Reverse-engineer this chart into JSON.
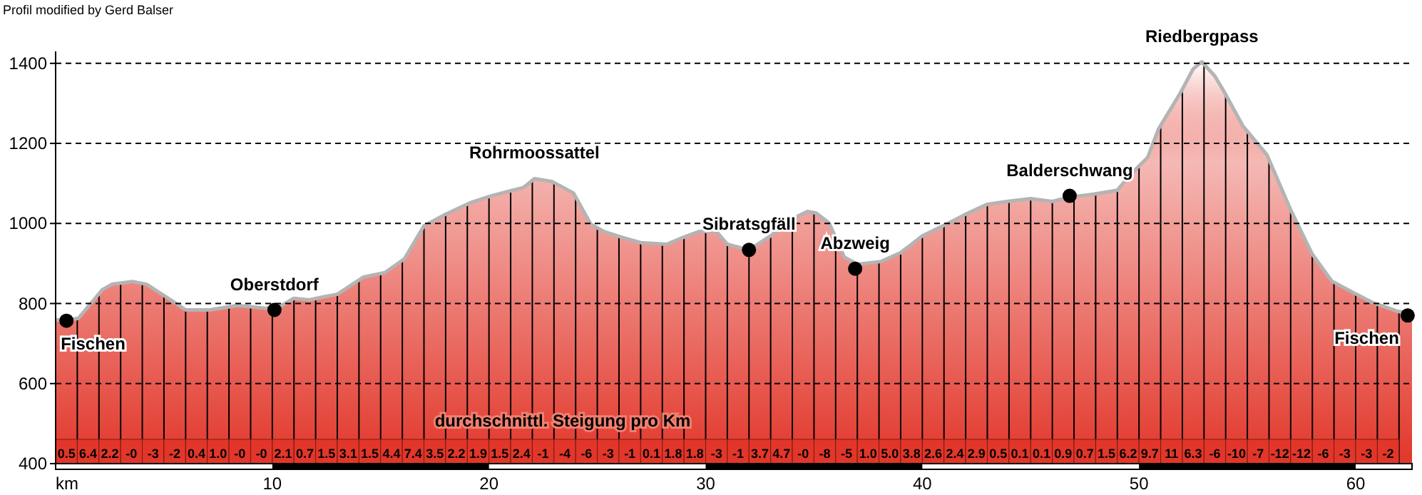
{
  "chart_data": {
    "type": "area",
    "title": "Profil modified by Gerd Balser",
    "xlabel": "km",
    "xlim": [
      0,
      62.6
    ],
    "ylim": [
      400,
      1430
    ],
    "xticks": [
      10,
      20,
      30,
      40,
      50,
      60
    ],
    "yticks": [
      400,
      600,
      800,
      1000,
      1200,
      1400
    ],
    "grid": true,
    "series": [
      {
        "color": "#e2362a",
        "x": [
          0,
          0.4,
          1.05,
          2.15,
          2.6,
          3.55,
          4.2,
          5.2,
          6.0,
          7.1,
          8.4,
          9.7,
          10.3,
          11.0,
          11.7,
          12.4,
          13.0,
          14.2,
          15.2,
          16.1,
          17.0,
          18.0,
          19.1,
          20.1,
          21.1,
          21.6,
          22.1,
          22.9,
          23.9,
          24.7,
          25.3,
          26.1,
          27.0,
          28.2,
          29.0,
          29.7,
          30.5,
          31.0,
          32.0,
          33.0,
          33.9,
          34.7,
          35.1,
          35.7,
          36.4,
          37.0,
          38.1,
          39.0,
          40.0,
          41.1,
          42.0,
          43.0,
          43.9,
          45.0,
          46.0,
          46.8,
          47.9,
          49.0,
          49.6,
          50.4,
          50.9,
          51.9,
          52.5,
          52.9,
          53.5,
          53.9,
          54.8,
          55.9,
          57.0,
          58.0,
          58.9,
          59.9,
          60.8,
          61.9,
          62.6
        ],
        "values": [
          760,
          757,
          763,
          834,
          848,
          855,
          848,
          813,
          784,
          784,
          795,
          788,
          791,
          813,
          809,
          817,
          823,
          866,
          877,
          912,
          994,
          1023,
          1051,
          1069,
          1083,
          1090,
          1112,
          1105,
          1076,
          998,
          980,
          966,
          952,
          948,
          966,
          980,
          980,
          948,
          934,
          969,
          1009,
          1030,
          1026,
          1001,
          916,
          898,
          905,
          927,
          969,
          998,
          1023,
          1048,
          1055,
          1062,
          1055,
          1066,
          1073,
          1083,
          1122,
          1165,
          1236,
          1325,
          1386,
          1404,
          1368,
          1332,
          1243,
          1172,
          1034,
          923,
          856,
          827,
          802,
          781,
          774
        ]
      },
      {
        "type": "scatter",
        "color": "#000000",
        "marker": "circle",
        "x": [
          0.5,
          10.1,
          32.0,
          36.9,
          46.8,
          62.4
        ],
        "values": [
          757,
          784,
          934,
          887,
          1069,
          770
        ]
      }
    ],
    "annotations": [
      "durchschnittl. Steigung pro Km",
      {
        "text": "Fischen",
        "x": 0.5,
        "y": 757
      },
      {
        "text": "Oberstdorf",
        "x": 10.1,
        "y": 784
      },
      {
        "text": "Rohrmoossattel",
        "x": 22.1,
        "y": 1112
      },
      {
        "text": "Sibratsgfäll",
        "x": 32.0,
        "y": 934
      },
      {
        "text": "Abzweig",
        "x": 36.9,
        "y": 887
      },
      {
        "text": "Balderschwang",
        "x": 46.8,
        "y": 1069
      },
      {
        "text": "Riedbergpass",
        "x": 52.9,
        "y": 1404
      },
      {
        "text": "Fischen",
        "x": 62.4,
        "y": 770
      },
      {
        "text": "0.5",
        "x": 0.5
      },
      {
        "text": "6.4",
        "x": 1.5
      },
      {
        "text": "2.2",
        "x": 2.5
      },
      {
        "text": "-0",
        "x": 3.5
      },
      {
        "text": "-3",
        "x": 4.5
      },
      {
        "text": "-2",
        "x": 5.5
      },
      {
        "text": "0.4",
        "x": 6.5
      },
      {
        "text": "1.0",
        "x": 7.5
      },
      {
        "text": "-0",
        "x": 8.5
      },
      {
        "text": "-0",
        "x": 9.5
      },
      {
        "text": "2.1",
        "x": 10.5
      },
      {
        "text": "0.7",
        "x": 11.5
      },
      {
        "text": "1.5",
        "x": 12.5
      },
      {
        "text": "3.1",
        "x": 13.5
      },
      {
        "text": "1.5",
        "x": 14.5
      },
      {
        "text": "4.4",
        "x": 15.5
      },
      {
        "text": "7.4",
        "x": 16.5
      },
      {
        "text": "3.5",
        "x": 17.5
      },
      {
        "text": "2.2",
        "x": 18.5
      },
      {
        "text": "1.9",
        "x": 19.5
      },
      {
        "text": "1.5",
        "x": 20.5
      },
      {
        "text": "2.4",
        "x": 21.5
      },
      {
        "text": "-1",
        "x": 22.5
      },
      {
        "text": "-4",
        "x": 23.5
      },
      {
        "text": "-6",
        "x": 24.5
      },
      {
        "text": "-3",
        "x": 25.5
      },
      {
        "text": "-1",
        "x": 26.5
      },
      {
        "text": "0.1",
        "x": 27.5
      },
      {
        "text": "1.8",
        "x": 28.5
      },
      {
        "text": "1.8",
        "x": 29.5
      },
      {
        "text": "-3",
        "x": 30.5
      },
      {
        "text": "-1",
        "x": 31.5
      },
      {
        "text": "3.7",
        "x": 32.5
      },
      {
        "text": "4.7",
        "x": 33.5
      },
      {
        "text": "-0",
        "x": 34.5
      },
      {
        "text": "-8",
        "x": 35.5
      },
      {
        "text": "-5",
        "x": 36.5
      },
      {
        "text": "1.0",
        "x": 37.5
      },
      {
        "text": "5.0",
        "x": 38.5
      },
      {
        "text": "3.8",
        "x": 39.5
      },
      {
        "text": "2.6",
        "x": 40.5
      },
      {
        "text": "2.4",
        "x": 41.5
      },
      {
        "text": "2.9",
        "x": 42.5
      },
      {
        "text": "0.5",
        "x": 43.5
      },
      {
        "text": "0.1",
        "x": 44.5
      },
      {
        "text": "0.1",
        "x": 45.5
      },
      {
        "text": "0.9",
        "x": 46.5
      },
      {
        "text": "0.7",
        "x": 47.5
      },
      {
        "text": "1.5",
        "x": 48.5
      },
      {
        "text": "6.2",
        "x": 49.5
      },
      {
        "text": "9.7",
        "x": 50.5
      },
      {
        "text": "11",
        "x": 51.5
      },
      {
        "text": "6.3",
        "x": 52.5
      },
      {
        "text": "-6",
        "x": 53.5
      },
      {
        "text": "-10",
        "x": 54.5
      },
      {
        "text": "-7",
        "x": 55.5
      },
      {
        "text": "-12",
        "x": 56.5
      },
      {
        "text": "-12",
        "x": 57.5
      },
      {
        "text": "-6",
        "x": 58.5
      },
      {
        "text": "-3",
        "x": 59.5
      },
      {
        "text": "-3",
        "x": 60.5
      },
      {
        "text": "-2",
        "x": 61.5
      }
    ]
  }
}
